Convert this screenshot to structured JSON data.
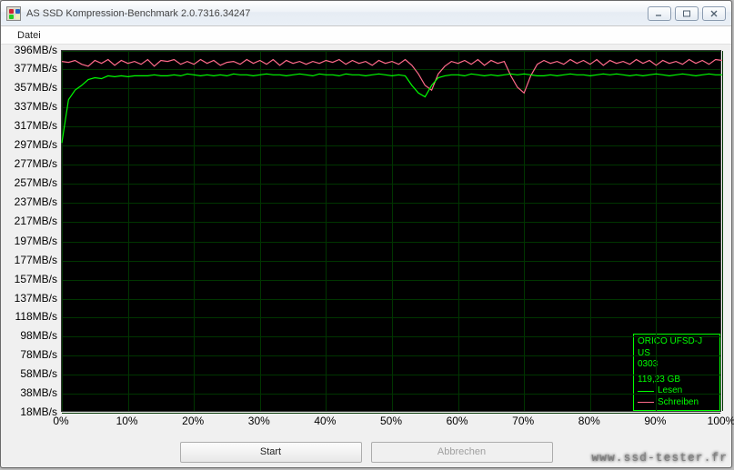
{
  "window": {
    "title": "AS SSD Kompression-Benchmark 2.0.7316.34247"
  },
  "menu": {
    "datei": "Datei"
  },
  "chart": {
    "type": "line",
    "background_color": "#000000",
    "grid_color": "#003500",
    "line_colors": {
      "read": "#00ff00",
      "write": "#ff6a8a"
    },
    "ylim": [
      18,
      396
    ],
    "yticks": [
      396,
      377,
      357,
      337,
      317,
      297,
      277,
      257,
      237,
      217,
      197,
      177,
      157,
      137,
      118,
      98,
      78,
      58,
      38,
      18
    ],
    "ytick_unit": "MB/s",
    "xlim_percent": [
      0,
      100
    ],
    "xticks_percent": [
      0,
      10,
      20,
      30,
      40,
      50,
      60,
      70,
      80,
      90,
      100
    ],
    "series": {
      "read": {
        "label": "Lesen",
        "values_mbs": [
          300,
          345,
          355,
          360,
          366,
          368,
          367,
          370,
          369,
          370,
          369,
          370,
          370,
          370,
          371,
          370,
          370,
          371,
          370,
          372,
          371,
          370,
          371,
          370,
          371,
          370,
          372,
          371,
          371,
          370,
          371,
          372,
          371,
          371,
          370,
          371,
          372,
          371,
          370,
          372,
          371,
          371,
          370,
          372,
          371,
          371,
          370,
          371,
          372,
          371,
          370,
          371,
          370,
          360,
          352,
          348,
          360,
          368,
          370,
          371,
          371,
          370,
          372,
          371,
          370,
          371,
          370,
          371,
          372,
          371,
          372,
          371,
          370,
          370,
          371,
          370,
          371,
          372,
          371,
          371,
          370,
          371,
          372,
          371,
          372,
          371,
          370,
          371,
          370,
          371,
          372,
          371,
          370,
          371,
          372,
          371,
          370,
          371,
          372,
          371,
          371
        ]
      },
      "write": {
        "label": "Schreiben",
        "values_mbs": [
          385,
          384,
          386,
          382,
          380,
          386,
          383,
          387,
          381,
          386,
          383,
          385,
          382,
          387,
          380,
          386,
          385,
          387,
          382,
          385,
          382,
          387,
          383,
          386,
          381,
          384,
          385,
          382,
          387,
          383,
          386,
          382,
          387,
          381,
          386,
          383,
          385,
          382,
          385,
          383,
          386,
          384,
          387,
          382,
          386,
          383,
          385,
          381,
          386,
          383,
          385,
          382,
          387,
          381,
          372,
          360,
          355,
          372,
          380,
          385,
          383,
          386,
          382,
          387,
          381,
          386,
          383,
          385,
          370,
          358,
          352,
          370,
          382,
          386,
          383,
          385,
          382,
          387,
          383,
          386,
          382,
          387,
          381,
          386,
          383,
          385,
          382,
          387,
          383,
          386,
          381,
          386,
          383,
          385,
          382,
          387,
          383,
          386,
          382,
          387,
          386
        ]
      }
    }
  },
  "legend": {
    "device": "ORICO UFSD-J US",
    "code": "0303",
    "capacity": "119,23 GB",
    "read_label": "Lesen",
    "write_label": "Schreiben"
  },
  "buttons": {
    "start": "Start",
    "abort": "Abbrechen"
  },
  "watermark": "www.ssd-tester.fr"
}
